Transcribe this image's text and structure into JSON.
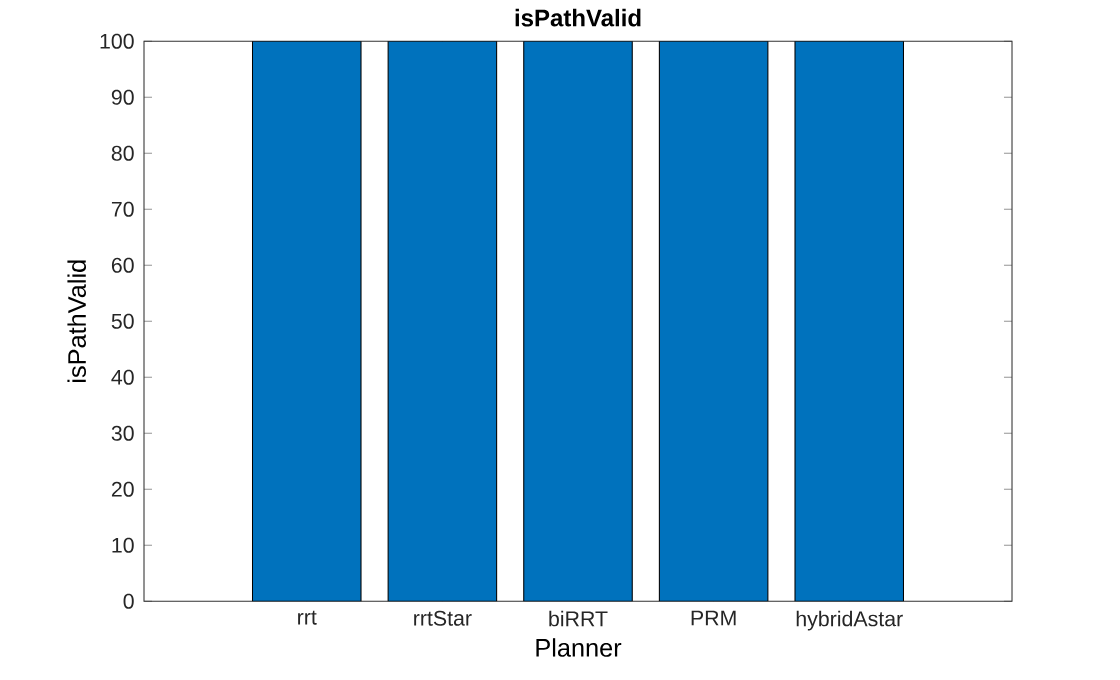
{
  "chart_data": {
    "type": "bar",
    "title": "isPathValid",
    "xlabel": "Planner",
    "ylabel": "isPathValid",
    "categories": [
      "rrt",
      "rrtStar",
      "biRRT",
      "PRM",
      "hybridAstar"
    ],
    "values": [
      100,
      100,
      100,
      100,
      100
    ],
    "color": "#0072bd",
    "ylim": [
      0,
      100
    ],
    "yticks": [
      0,
      10,
      20,
      30,
      40,
      50,
      60,
      70,
      80,
      90,
      100
    ],
    "grid": false
  }
}
